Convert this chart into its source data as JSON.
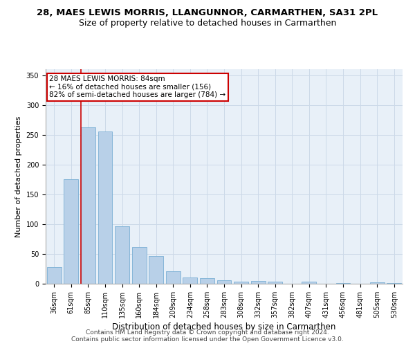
{
  "title1": "28, MAES LEWIS MORRIS, LLANGUNNOR, CARMARTHEN, SA31 2PL",
  "title2": "Size of property relative to detached houses in Carmarthen",
  "xlabel": "Distribution of detached houses by size in Carmarthen",
  "ylabel": "Number of detached properties",
  "bar_color": "#b8d0e8",
  "bar_edge_color": "#7aafd4",
  "categories": [
    "36sqm",
    "61sqm",
    "85sqm",
    "110sqm",
    "135sqm",
    "160sqm",
    "184sqm",
    "209sqm",
    "234sqm",
    "258sqm",
    "283sqm",
    "308sqm",
    "332sqm",
    "357sqm",
    "382sqm",
    "407sqm",
    "431sqm",
    "456sqm",
    "481sqm",
    "505sqm",
    "530sqm"
  ],
  "values": [
    28,
    175,
    263,
    255,
    96,
    62,
    47,
    21,
    11,
    9,
    6,
    4,
    5,
    4,
    0,
    4,
    0,
    1,
    0,
    2,
    1
  ],
  "ylim": [
    0,
    360
  ],
  "yticks": [
    0,
    50,
    100,
    150,
    200,
    250,
    300,
    350
  ],
  "vline_index": 2,
  "property_label": "28 MAES LEWIS MORRIS: 84sqm",
  "annotation_line1": "← 16% of detached houses are smaller (156)",
  "annotation_line2": "82% of semi-detached houses are larger (784) →",
  "annotation_box_color": "#ffffff",
  "annotation_box_edge": "#cc0000",
  "vline_color": "#cc0000",
  "grid_color": "#ccd9e8",
  "background_color": "#e8f0f8",
  "footer1": "Contains HM Land Registry data © Crown copyright and database right 2024.",
  "footer2": "Contains public sector information licensed under the Open Government Licence v3.0.",
  "title1_fontsize": 9.5,
  "title2_fontsize": 9,
  "xlabel_fontsize": 8.5,
  "ylabel_fontsize": 8,
  "tick_fontsize": 7,
  "annot_fontsize": 7.5,
  "footer_fontsize": 6.5
}
